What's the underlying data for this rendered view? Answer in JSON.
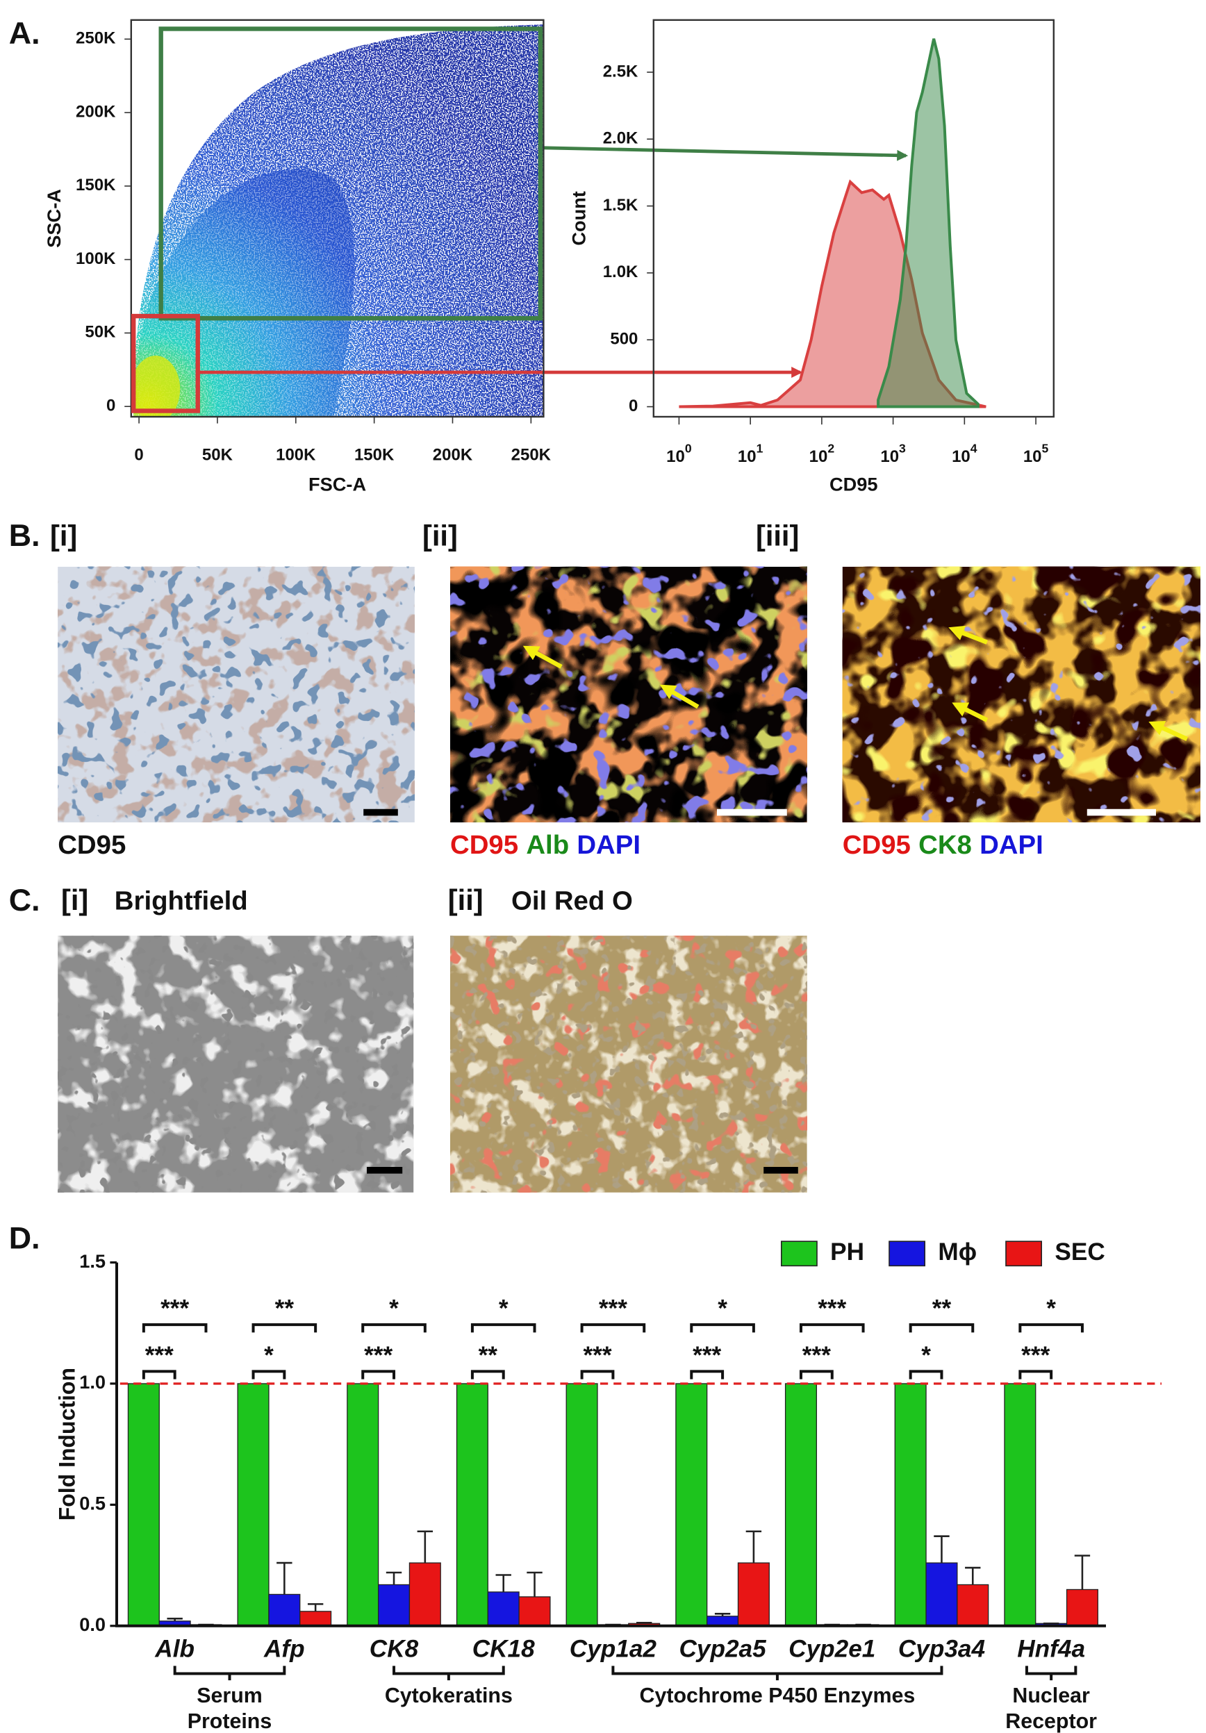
{
  "panel_labels": [
    "A.",
    "B.",
    "C.",
    "D."
  ],
  "images": [
    {
      "tag": "[i]",
      "caption": [
        {
          "text": "CD95",
          "color": "#111111"
        }
      ]
    },
    {
      "tag": "[ii]",
      "caption": [
        {
          "text": "CD95",
          "color": "#e01515"
        },
        {
          "text": "Alb",
          "color": "#1a8a1a"
        },
        {
          "text": "DAPI",
          "color": "#1515d8"
        }
      ]
    },
    {
      "tag": "[iii]",
      "caption": [
        {
          "text": "CD95",
          "color": "#e01515"
        },
        {
          "text": "CK8",
          "color": "#1a8a1a"
        },
        {
          "text": "DAPI",
          "color": "#1515d8"
        }
      ]
    },
    {
      "tag": "[i]",
      "title": "Brightfield"
    },
    {
      "tag": "[ii]",
      "title": "Oil Red O"
    }
  ],
  "chart_data": [
    {
      "type": "density",
      "xlabel": "FSC-A",
      "ylabel": "SSC-A",
      "xlim": [
        -5000,
        258000
      ],
      "ylim": [
        -7000,
        263000
      ],
      "xticks": [
        0,
        {
          "value": 50000,
          "label": "50K"
        },
        {
          "value": 100000,
          "label": "100K"
        },
        {
          "value": 150000,
          "label": "150K"
        },
        {
          "value": 200000,
          "label": "200K"
        },
        {
          "value": 250000,
          "label": "250K"
        }
      ],
      "yticks": [
        0,
        {
          "value": 50000,
          "label": "50K"
        },
        {
          "value": 100000,
          "label": "100K"
        },
        {
          "value": 150000,
          "label": "150K"
        },
        {
          "value": 200000,
          "label": "200K"
        },
        {
          "value": 250000,
          "label": "250K"
        }
      ],
      "gates": [
        {
          "color": "#3f7f46",
          "xlim": [
            14000,
            256000
          ],
          "ylim": [
            60000,
            257000
          ]
        },
        {
          "color": "#d43a3a",
          "xlim": [
            -3500,
            37500
          ],
          "ylim": [
            -3000,
            61500
          ]
        }
      ]
    },
    {
      "type": "area",
      "xlabel": "CD95",
      "ylabel": "Count",
      "xlog": true,
      "xlim": [
        0.44,
        178000
      ],
      "ylim": [
        -75,
        2890
      ],
      "xticks": [
        {
          "value": 1,
          "label": "10",
          "sup": "0"
        },
        {
          "value": 10,
          "label": "10",
          "sup": "1"
        },
        {
          "value": 100,
          "label": "10",
          "sup": "2"
        },
        {
          "value": 1000,
          "label": "10",
          "sup": "3"
        },
        {
          "value": 10000,
          "label": "10",
          "sup": "4"
        },
        {
          "value": 100000,
          "label": "10",
          "sup": "5"
        }
      ],
      "yticks": [
        0,
        500,
        {
          "value": 1000,
          "label": "1.0K"
        },
        {
          "value": 1500,
          "label": "1.5K"
        },
        {
          "value": 2000,
          "label": "2.0K"
        },
        {
          "value": 2500,
          "label": "2.5K"
        }
      ],
      "series": [
        {
          "color": "#d94040",
          "x": [
            1,
            3,
            10,
            14,
            24,
            50,
            71,
            100,
            148,
            209,
            251,
            363,
            513,
            741,
            871,
            1259,
            1820,
            2570,
            4365,
            7586,
            20000
          ],
          "values": [
            0,
            5,
            30,
            10,
            50,
            200,
            500,
            900,
            1300,
            1550,
            1680,
            1600,
            1620,
            1550,
            1580,
            1300,
            950,
            550,
            200,
            50,
            0
          ]
        },
        {
          "color": "#3a8a4a",
          "x": [
            617,
            871,
            1259,
            1514,
            1820,
            2138,
            2570,
            3715,
            4365,
            5248,
            6310,
            7586,
            10715,
            15488
          ],
          "values": [
            50,
            300,
            800,
            1200,
            1800,
            2200,
            2350,
            2750,
            2600,
            2100,
            1200,
            500,
            100,
            20
          ]
        }
      ]
    },
    {
      "type": "bar",
      "ylabel": "Fold Induction",
      "legend": "top-right",
      "categories": [
        "Alb",
        "Afp",
        "CK8",
        "CK18",
        "Cyp1a2",
        "Cyp2a5",
        "Cyp2e1",
        "Cyp3a4",
        "Hnf4a"
      ],
      "ylim": [
        0,
        1.5
      ],
      "yticks": [
        {
          "value": 0,
          "label": "0.0"
        },
        0.5,
        {
          "value": 1,
          "label": "1.0"
        },
        1.5
      ],
      "series": [
        {
          "name": "PH",
          "color": "#1dc41d",
          "values": [
            1,
            1,
            1,
            1,
            1,
            1,
            1,
            1,
            1
          ]
        },
        {
          "name": "Mϕ",
          "color": "#1515e0",
          "values": [
            0.02,
            0.13,
            0.17,
            0.14,
            0.005,
            0.04,
            0.005,
            0.26,
            0.01
          ],
          "errors": [
            0.01,
            0.13,
            0.05,
            0.07,
            0,
            0.01,
            0,
            0.11,
            0
          ]
        },
        {
          "name": "SEC",
          "color": "#e81515",
          "values": [
            0.005,
            0.06,
            0.26,
            0.12,
            0.01,
            0.26,
            0.005,
            0.17,
            0.15
          ],
          "errors": [
            0,
            0.03,
            0.13,
            0.1,
            0.003,
            0.13,
            0,
            0.07,
            0.14
          ]
        }
      ],
      "reference_line": {
        "value": 1,
        "color": "#e02020"
      },
      "annotations": [
        {
          "series": [
            "PH",
            "Mϕ"
          ],
          "labels": [
            "***",
            "*",
            "***",
            "**",
            "***",
            "***",
            "***",
            "*",
            "***"
          ]
        },
        {
          "series": [
            "PH",
            "SEC"
          ],
          "labels": [
            "***",
            "**",
            "*",
            "*",
            "***",
            "*",
            "***",
            "**",
            "*"
          ]
        }
      ],
      "groups": [
        {
          "label_lines": [
            "Serum",
            "Proteins"
          ],
          "categories": [
            "Alb",
            "Afp"
          ]
        },
        {
          "label_lines": [
            "Cytokeratins"
          ],
          "categories": [
            "CK8",
            "CK18"
          ]
        },
        {
          "label_lines": [
            "Cytochrome P450 Enzymes"
          ],
          "categories": [
            "Cyp1a2",
            "Cyp3a4"
          ]
        },
        {
          "label_lines": [
            "Nuclear",
            "Receptor"
          ],
          "categories": [
            "Hnf4a",
            "Hnf4a"
          ]
        }
      ]
    }
  ]
}
